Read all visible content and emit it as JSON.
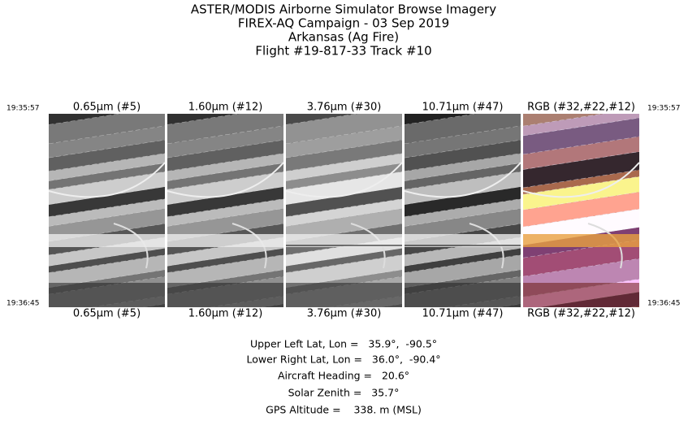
{
  "header": {
    "lines": [
      "ASTER/MODIS Airborne Simulator Browse Imagery",
      "FIREX-AQ Campaign - 03 Sep 2019",
      "Arkansas (Ag Fire)",
      "Flight #19-817-33 Track #10"
    ]
  },
  "times": {
    "start": "19:35:57",
    "end": "19:36:45"
  },
  "panels": [
    {
      "top_label": "0.65μm (#5)",
      "bottom_label": "0.65μm (#5)"
    },
    {
      "top_label": "1.60μm (#12)",
      "bottom_label": "1.60μm (#12)"
    },
    {
      "top_label": "3.76μm (#30)",
      "bottom_label": "3.76μm (#30)"
    },
    {
      "top_label": "10.71μm (#47)",
      "bottom_label": "10.71μm (#47)"
    },
    {
      "top_label": "RGB (#32,#22,#12)",
      "bottom_label": "RGB (#32,#22,#12)"
    }
  ],
  "info": [
    "Upper Left Lat, Lon =   35.9°,  -90.5°",
    "Lower Right Lat, Lon =   36.0°,  -90.4°",
    "Aircraft Heading =   20.6°",
    "Solar Zenith =   35.7°",
    "GPS Altitude =    338. m (MSL)"
  ]
}
